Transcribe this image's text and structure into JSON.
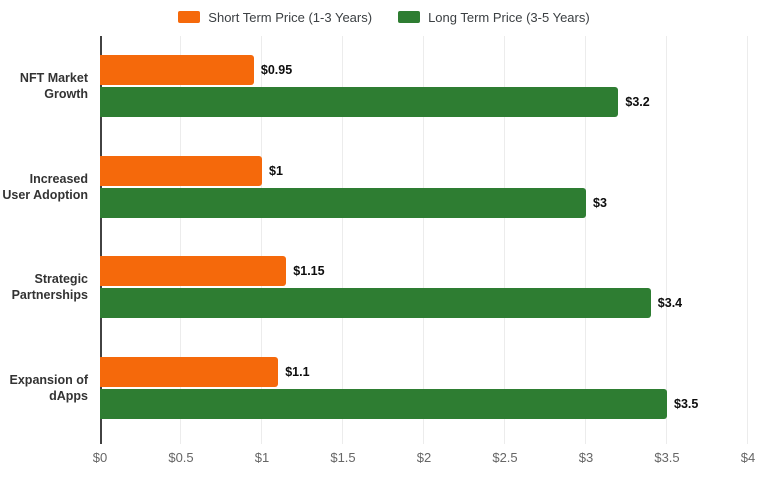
{
  "chart_data": {
    "type": "bar",
    "orientation": "horizontal",
    "title": "",
    "xlabel": "",
    "ylabel": "",
    "xlim": [
      0,
      4
    ],
    "grid": true,
    "legend_position": "top",
    "categories": [
      "NFT Market Growth",
      "Increased User Adoption",
      "Strategic Partnerships",
      "Expansion of dApps"
    ],
    "series": [
      {
        "name": "Short Term Price (1-3 Years)",
        "color": "#F5690B",
        "values": [
          0.95,
          1,
          1.15,
          1.1
        ],
        "value_labels": [
          "$0.95",
          "$1",
          "$1.15",
          "$1.1"
        ]
      },
      {
        "name": "Long Term Price (3-5 Years)",
        "color": "#2E7D32",
        "values": [
          3.2,
          3,
          3.4,
          3.5
        ],
        "value_labels": [
          "$3.2",
          "$3",
          "$3.4",
          "$3.5"
        ]
      }
    ],
    "x_ticks": [
      {
        "value": 0,
        "label": "$0"
      },
      {
        "value": 0.5,
        "label": "$0.5"
      },
      {
        "value": 1,
        "label": "$1"
      },
      {
        "value": 1.5,
        "label": "$1.5"
      },
      {
        "value": 2,
        "label": "$2"
      },
      {
        "value": 2.5,
        "label": "$2.5"
      },
      {
        "value": 3,
        "label": "$3"
      },
      {
        "value": 3.5,
        "label": "$3.5"
      },
      {
        "value": 4,
        "label": "$4"
      }
    ],
    "axis_colors": {
      "baseline": "#424242",
      "gridline": "#ececec",
      "tick_label": "#666666",
      "category_label": "#333333",
      "value_label": "#0d0d0d"
    }
  }
}
